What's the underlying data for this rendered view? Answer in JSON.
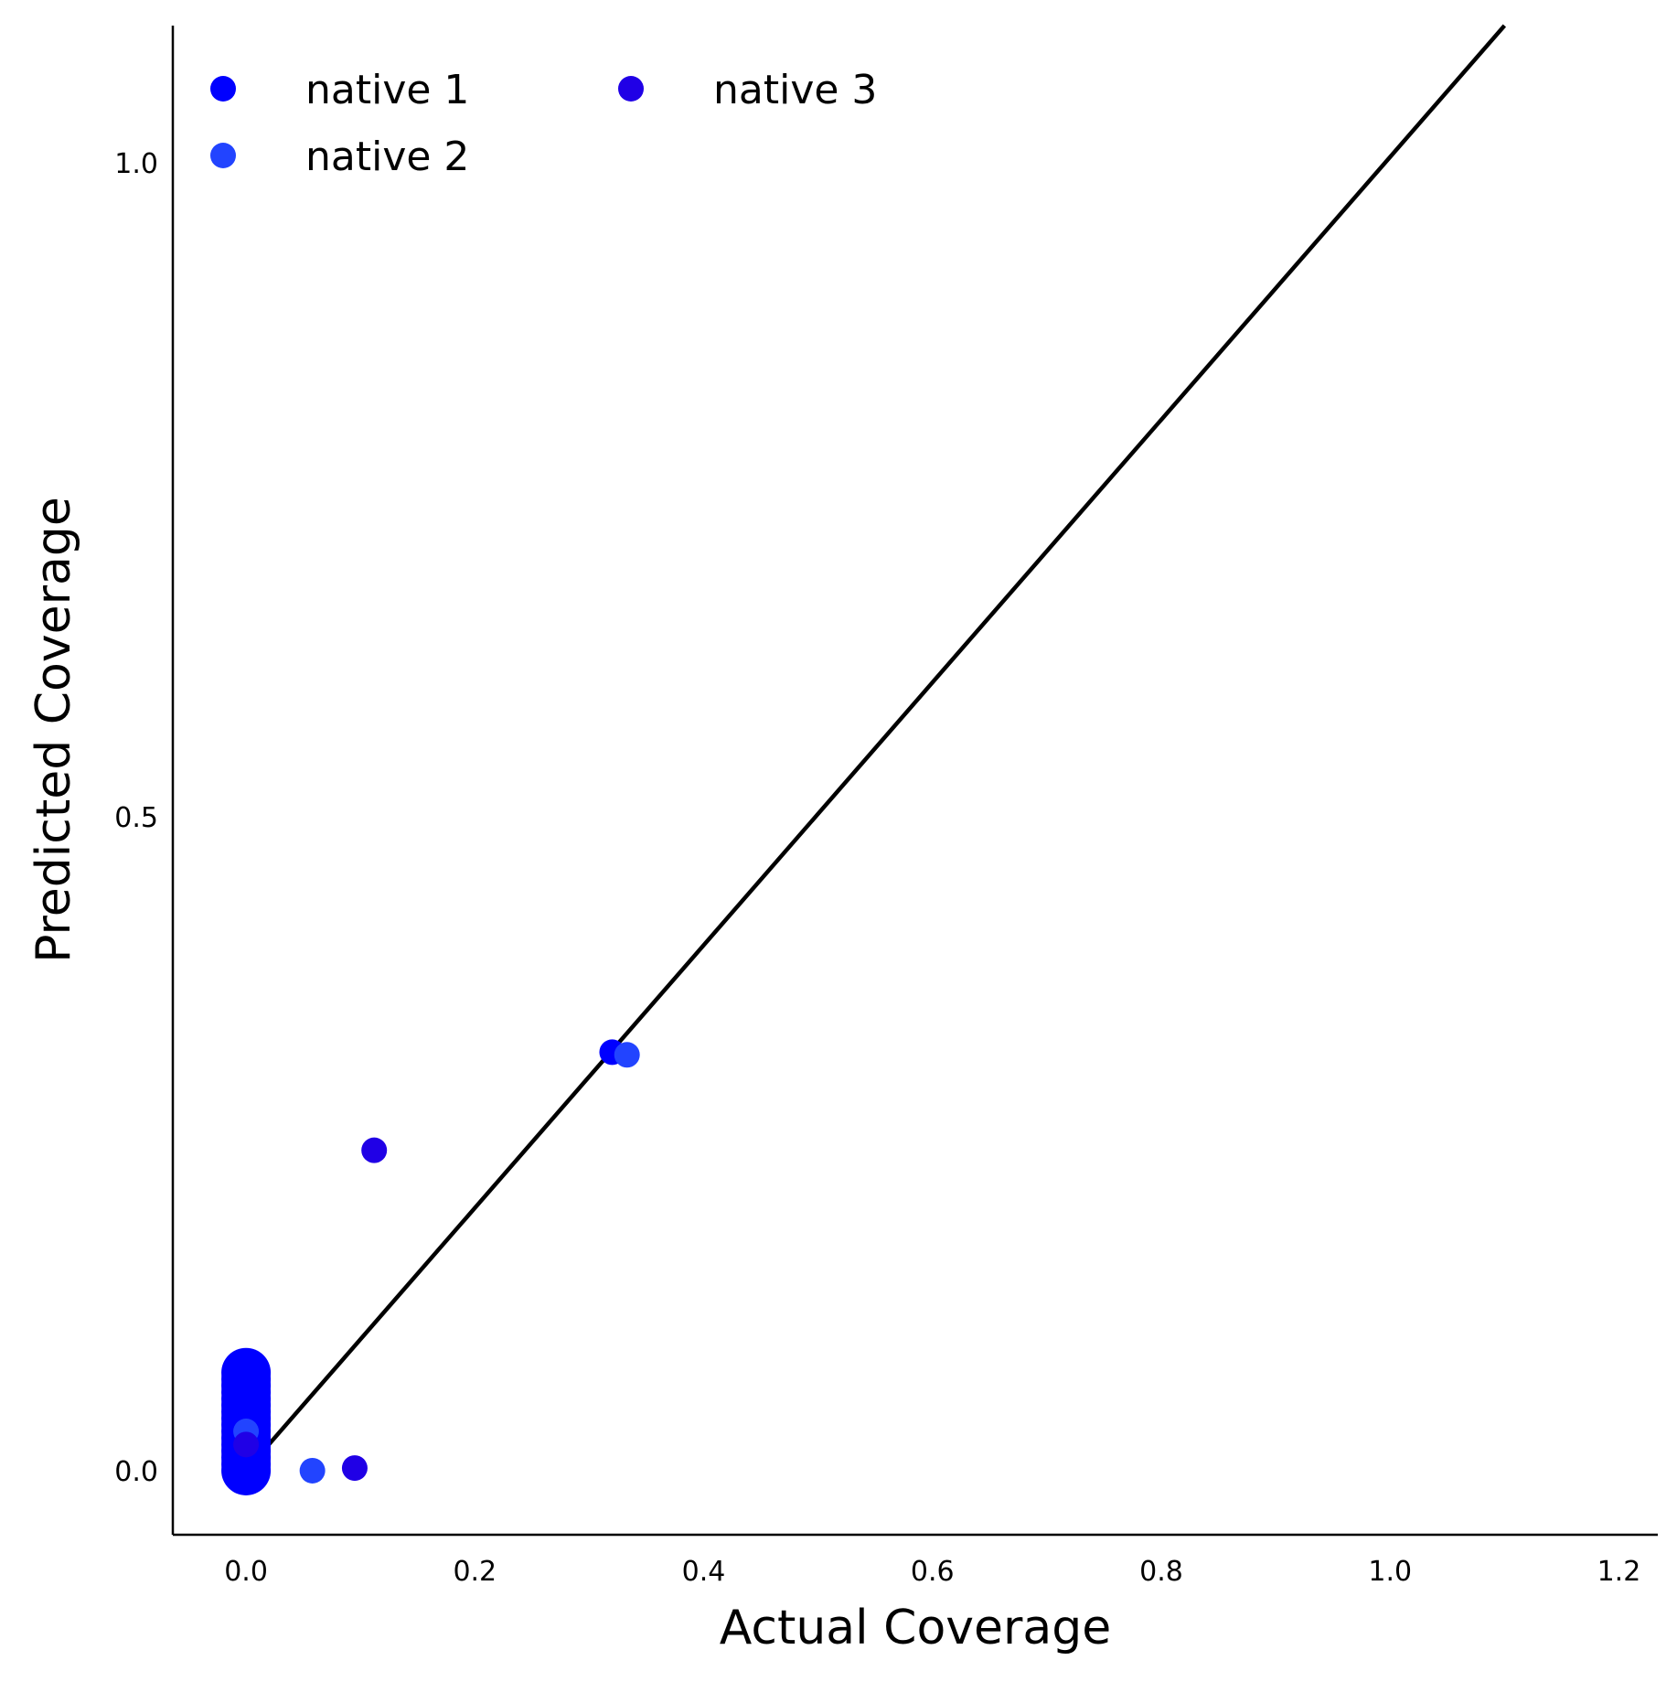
{
  "chart_data": {
    "type": "scatter",
    "title": "",
    "xlabel": "Actual Coverage",
    "ylabel": "Predicted Coverage",
    "xlim": [
      -0.064,
      1.234
    ],
    "ylim": [
      -0.049,
      1.105
    ],
    "xticks": [
      0.0,
      0.2,
      0.4,
      0.6,
      0.8,
      1.0,
      1.2
    ],
    "xtick_labels": [
      "0.0",
      "0.2",
      "0.4",
      "0.6",
      "0.8",
      "1.0",
      "1.2"
    ],
    "yticks": [
      0.0,
      0.5,
      1.0
    ],
    "ytick_labels": [
      "0.0",
      "0.5",
      "1.0"
    ],
    "grid": false,
    "legend_position": "top-left",
    "reference_line": {
      "from": [
        0.0,
        0.0
      ],
      "to": [
        1.1,
        1.105
      ],
      "color": "#000000"
    },
    "series": [
      {
        "name": "native 1",
        "color": "#0000ff",
        "points": [
          {
            "x": 0.0,
            "y": 0.0
          },
          {
            "x": 0.0,
            "y": 0.005
          },
          {
            "x": 0.0,
            "y": 0.01
          },
          {
            "x": 0.0,
            "y": 0.015
          },
          {
            "x": 0.0,
            "y": 0.02
          },
          {
            "x": 0.0,
            "y": 0.025
          },
          {
            "x": 0.0,
            "y": 0.03
          },
          {
            "x": 0.0,
            "y": 0.035
          },
          {
            "x": 0.0,
            "y": 0.04
          },
          {
            "x": 0.0,
            "y": 0.045
          },
          {
            "x": 0.0,
            "y": 0.05
          },
          {
            "x": 0.0,
            "y": 0.055
          },
          {
            "x": 0.0,
            "y": 0.06
          },
          {
            "x": 0.0,
            "y": 0.065
          },
          {
            "x": 0.0,
            "y": 0.07
          },
          {
            "x": 0.0,
            "y": 0.075
          },
          {
            "x": 0.005,
            "y": 0.006
          },
          {
            "x": 0.32,
            "y": 0.32
          }
        ]
      },
      {
        "name": "native 2",
        "color": "#2244ff",
        "points": [
          {
            "x": 0.0,
            "y": 0.03
          },
          {
            "x": 0.058,
            "y": 0.0
          },
          {
            "x": 0.333,
            "y": 0.318
          }
        ]
      },
      {
        "name": "native 3",
        "color": "#2000e6",
        "points": [
          {
            "x": 0.0,
            "y": 0.02
          },
          {
            "x": 0.095,
            "y": 0.002
          },
          {
            "x": 0.112,
            "y": 0.245
          }
        ]
      }
    ]
  }
}
